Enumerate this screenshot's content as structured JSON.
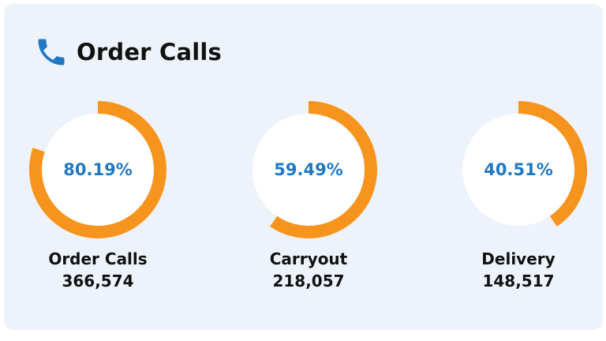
{
  "header": {
    "title": "Order Calls",
    "icon": "phone-icon",
    "icon_color": "#1f78c1"
  },
  "colors": {
    "ring": "#f7941d",
    "percent_text": "#1f78c1",
    "card_background": "#eef3fb"
  },
  "gauges": [
    {
      "percent_label": "80.19%",
      "fraction": 0.8019,
      "label": "Order Calls",
      "value": "366,574"
    },
    {
      "percent_label": "59.49%",
      "fraction": 0.5949,
      "label": "Carryout",
      "value": "218,057"
    },
    {
      "percent_label": "40.51%",
      "fraction": 0.4051,
      "label": "Delivery",
      "value": "148,517"
    }
  ]
}
